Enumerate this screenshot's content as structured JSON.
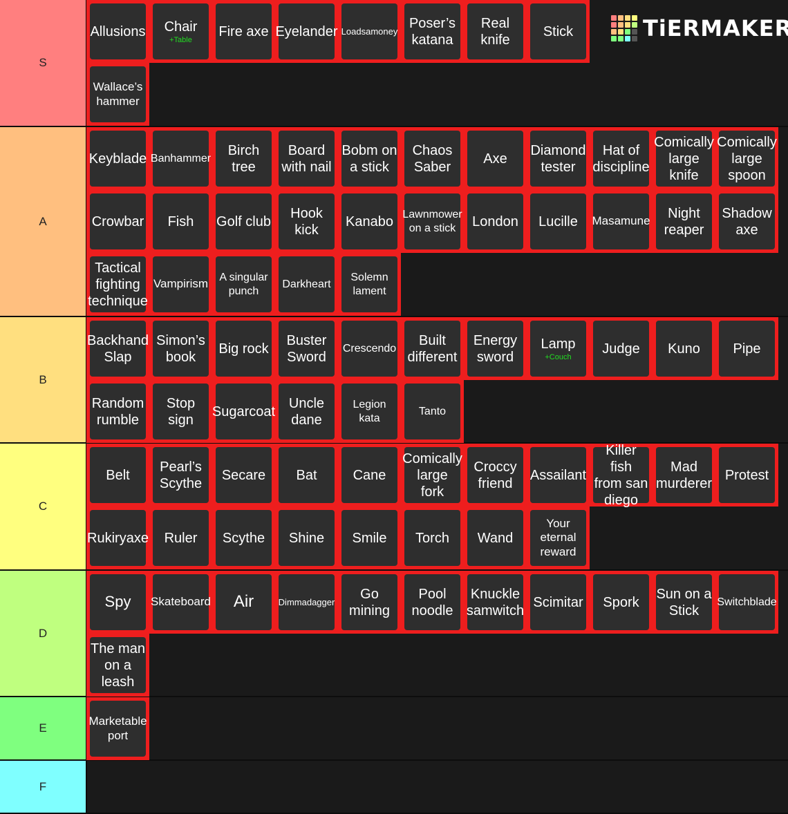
{
  "logo": {
    "text": "TiERMAKER",
    "grid_colors": [
      "#ff7f7f",
      "#ffbf7f",
      "#ffdf7f",
      "#ffff7f",
      "#ff7f7f",
      "#ffbf7f",
      "#ffdf7f",
      "#bfff7f",
      "#ffbf7f",
      "#ffdf7f",
      "#7fff7f",
      "#555555",
      "#7fff7f",
      "#7fff7f",
      "#7fffff",
      "#555555"
    ]
  },
  "colors": {
    "item_border": "#ee1e1e",
    "item_bg": "#2e2e2e",
    "background": "#1a1a1a",
    "sub_text": "#22dd22"
  },
  "tiers": [
    {
      "label": "S",
      "color": "#ff7f7f",
      "items": [
        {
          "text": "Allusions"
        },
        {
          "text": "Chair",
          "sub": "+Table"
        },
        {
          "text": "Fire axe"
        },
        {
          "text": "Eyelander"
        },
        {
          "text": "Loadsamoney"
        },
        {
          "text": "Poser’s\nkatana"
        },
        {
          "text": "Real\nknife"
        },
        {
          "text": "Stick"
        },
        {
          "text": "Wallace’s\nhammer"
        }
      ]
    },
    {
      "label": "A",
      "color": "#ffbf7f",
      "items": [
        {
          "text": "Keyblade"
        },
        {
          "text": "Banhammer"
        },
        {
          "text": "Birch tree"
        },
        {
          "text": "Board\nwith nail"
        },
        {
          "text": "Bobm on\na stick"
        },
        {
          "text": "Chaos\nSaber"
        },
        {
          "text": "Axe"
        },
        {
          "text": "Diamond\ntester"
        },
        {
          "text": "Hat of\ndiscipline"
        },
        {
          "text": "Comically\nlarge\nknife"
        },
        {
          "text": "Comically\nlarge\nspoon"
        },
        {
          "text": "Crowbar"
        },
        {
          "text": "Fish"
        },
        {
          "text": "Golf club"
        },
        {
          "text": "Hook\nkick"
        },
        {
          "text": "Kanabo"
        },
        {
          "text": "Lawnmower\non a stick"
        },
        {
          "text": "London"
        },
        {
          "text": "Lucille"
        },
        {
          "text": "Masamune"
        },
        {
          "text": "Night\nreaper"
        },
        {
          "text": "Shadow\naxe"
        },
        {
          "text": "Tactical\nfighting\ntechnique"
        },
        {
          "text": "Vampirism"
        },
        {
          "text": "A singular\npunch"
        },
        {
          "text": "Darkheart"
        },
        {
          "text": "Solemn\nlament"
        }
      ]
    },
    {
      "label": "B",
      "color": "#ffdf7f",
      "items": [
        {
          "text": "Backhand\nSlap"
        },
        {
          "text": "Simon’s\nbook"
        },
        {
          "text": "Big rock"
        },
        {
          "text": "Buster\nSword"
        },
        {
          "text": "Crescendo"
        },
        {
          "text": "Built\ndifferent"
        },
        {
          "text": "Energy\nsword"
        },
        {
          "text": "Lamp",
          "sub": "+Couch"
        },
        {
          "text": "Judge"
        },
        {
          "text": "Kuno"
        },
        {
          "text": "Pipe"
        },
        {
          "text": "Random\nrumble"
        },
        {
          "text": "Stop sign"
        },
        {
          "text": "Sugarcoat"
        },
        {
          "text": "Uncle\ndane"
        },
        {
          "text": "Legion\nkata"
        },
        {
          "text": "Tanto"
        }
      ]
    },
    {
      "label": "C",
      "color": "#ffff7f",
      "items": [
        {
          "text": "Belt"
        },
        {
          "text": "Pearl’s\nScythe"
        },
        {
          "text": "Secare"
        },
        {
          "text": "Bat"
        },
        {
          "text": "Cane"
        },
        {
          "text": "Comically\nlarge\nfork"
        },
        {
          "text": "Croccy\nfriend"
        },
        {
          "text": "Assailant"
        },
        {
          "text": "Killer fish\nfrom san\ndiego"
        },
        {
          "text": "Mad\nmurderer"
        },
        {
          "text": "Protest"
        },
        {
          "text": "Rukiryaxe"
        },
        {
          "text": "Ruler"
        },
        {
          "text": "Scythe"
        },
        {
          "text": "Shine"
        },
        {
          "text": "Smile"
        },
        {
          "text": "Torch"
        },
        {
          "text": "Wand"
        },
        {
          "text": "Your\neternal\nreward"
        }
      ]
    },
    {
      "label": "D",
      "color": "#bfff7f",
      "items": [
        {
          "text": "Spy"
        },
        {
          "text": "Skateboard"
        },
        {
          "text": "Air"
        },
        {
          "text": "Dimmadagger"
        },
        {
          "text": "Go\nmining"
        },
        {
          "text": "Pool\nnoodle"
        },
        {
          "text": "Knuckle\nsamwitch"
        },
        {
          "text": "Scimitar"
        },
        {
          "text": "Spork"
        },
        {
          "text": "Sun on a\nStick"
        },
        {
          "text": "Switchblade"
        },
        {
          "text": "The man\non a\nleash"
        }
      ]
    },
    {
      "label": "E",
      "color": "#7fff7f",
      "items": [
        {
          "text": "Marketable\nport"
        }
      ]
    },
    {
      "label": "F",
      "color": "#7fffff",
      "items": []
    }
  ]
}
